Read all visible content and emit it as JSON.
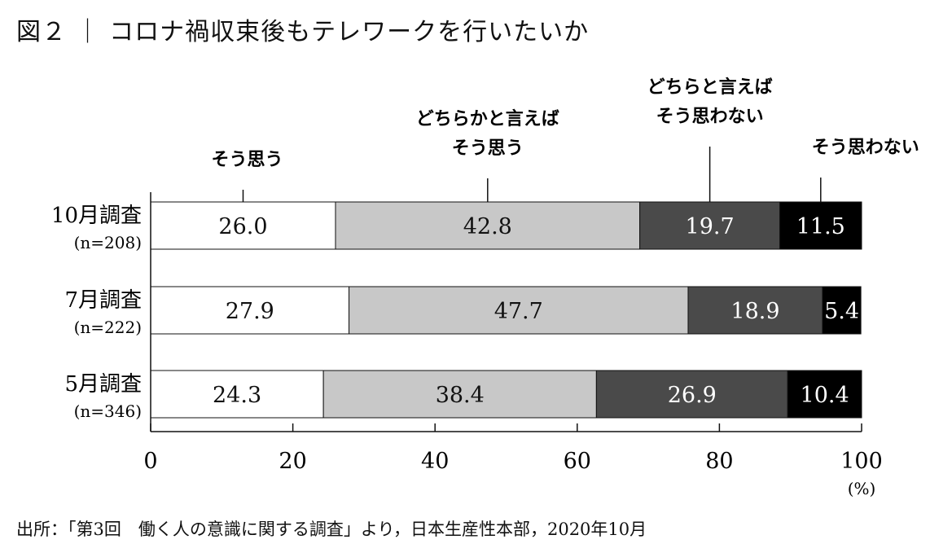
{
  "title": "図２ ｜ コロナ禍収束後もテレワークを行いたいか",
  "source": "出所：「第3回　働く人の意識に関する調査」より，日本生産性本部，2020年10月",
  "chart_data": {
    "type": "bar",
    "orientation": "horizontal",
    "stacked": true,
    "xlim": [
      0,
      100
    ],
    "xticks": [
      "0",
      "20",
      "40",
      "60",
      "80",
      "100"
    ],
    "unit": "(%)",
    "categories": [
      {
        "label": "10月調査",
        "n": "(n=208)"
      },
      {
        "label": "7月調査",
        "n": "(n=222)"
      },
      {
        "label": "5月調査",
        "n": "(n=346)"
      }
    ],
    "series": [
      {
        "name": "そう思う",
        "color": "#ffffff",
        "text_color": "#111111",
        "values": [
          26.0,
          27.9,
          24.3
        ],
        "labels": [
          "26.0",
          "27.9",
          "24.3"
        ]
      },
      {
        "name": "どちらかと言えば\nそう思う",
        "color": "#c8c8c8",
        "text_color": "#111111",
        "values": [
          42.8,
          47.7,
          38.4
        ],
        "labels": [
          "42.8",
          "47.7",
          "38.4"
        ]
      },
      {
        "name": "どちらと言えば\nそう思わない",
        "color": "#4a4a4a",
        "text_color": "#ffffff",
        "values": [
          19.7,
          18.9,
          26.9
        ],
        "labels": [
          "19.7",
          "18.9",
          "26.9"
        ]
      },
      {
        "name": "そう思わない",
        "color": "#000000",
        "text_color": "#ffffff",
        "values": [
          11.5,
          5.4,
          10.4
        ],
        "labels": [
          "11.5",
          "5.4",
          "10.4"
        ]
      }
    ],
    "grid": false,
    "legend": "callout labels above the top bar"
  }
}
